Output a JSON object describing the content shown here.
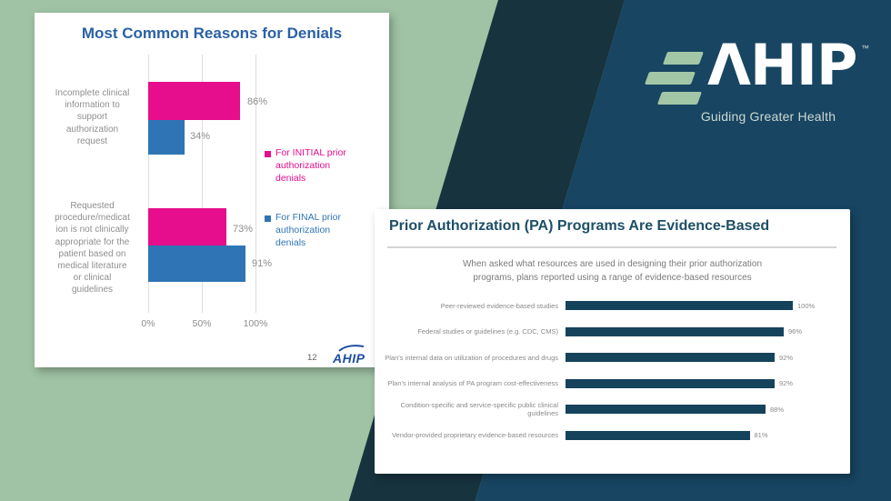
{
  "background": {
    "green": "#9fc3a4",
    "dark_teal": "#17333e",
    "navy": "#174562"
  },
  "brand": {
    "logo_text": "ΛHIP",
    "trademark": "™",
    "tagline": "Guiding Greater Health",
    "stripe_color": "#a2c7a6"
  },
  "slide_denials": {
    "title": "Most Common Reasons for Denials",
    "page_number": "12",
    "footer_logo": "AHIP",
    "x_ticks": [
      "0%",
      "50%",
      "100%"
    ],
    "legend": [
      {
        "label": "For INITIAL prior\nauthorization\ndenials",
        "color": "#e60e8c"
      },
      {
        "label": "For FINAL prior\nauthorization\ndenials",
        "color": "#2f75b5"
      }
    ],
    "groups": [
      {
        "label": "Incomplete clinical\ninformation to\nsupport\nauthorization\nrequest",
        "initial_display": "86%",
        "final_display": "34%"
      },
      {
        "label": "Requested\nprocedure/medicat\nion is not clinically\nappropriate for the\npatient based on\nmedical literature\nor clinical\nguidelines",
        "initial_display": "73%",
        "final_display": "91%"
      }
    ]
  },
  "slide_evidence": {
    "title": "Prior Authorization (PA) Programs Are Evidence-Based",
    "subtitle": "When asked what resources are used in designing their prior authorization\nprograms, plans reported using a range of evidence-based resources",
    "bar_color": "#16435c",
    "bars": [
      {
        "label": "Peer-reviewed evidence-based studies",
        "value": 100,
        "display": "100%"
      },
      {
        "label": "Federal studies or guidelines (e.g. CDC, CMS)",
        "value": 96,
        "display": "96%"
      },
      {
        "label": "Plan's internal data on utilization of procedures and drugs",
        "value": 92,
        "display": "92%"
      },
      {
        "label": "Plan's internal analysis of PA program cost-effectiveness",
        "value": 92,
        "display": "92%"
      },
      {
        "label": "Condition-specific and service-specific public clinical guidelines",
        "value": 88,
        "display": "88%"
      },
      {
        "label": "Vendor-provided proprietary evidence-based resources",
        "value": 81,
        "display": "81%"
      }
    ]
  },
  "chart_data": [
    {
      "type": "bar",
      "orientation": "horizontal",
      "title": "Most Common Reasons for Denials",
      "categories": [
        "Incomplete clinical information to support authorization request",
        "Requested procedure/medication is not clinically appropriate for the patient based on medical literature or clinical guidelines"
      ],
      "series": [
        {
          "name": "For INITIAL prior authorization denials",
          "color": "#e60e8c",
          "values": [
            86,
            73
          ]
        },
        {
          "name": "For FINAL prior authorization denials",
          "color": "#2f75b5",
          "values": [
            34,
            91
          ]
        }
      ],
      "xlabel": "",
      "ylabel": "",
      "xlim": [
        0,
        100
      ],
      "x_ticks": [
        "0%",
        "50%",
        "100%"
      ],
      "grid": true,
      "legend_position": "right",
      "value_labels": [
        "86%",
        "34%",
        "73%",
        "91%"
      ]
    },
    {
      "type": "bar",
      "orientation": "horizontal",
      "title": "Prior Authorization (PA) Programs Are Evidence-Based",
      "subtitle": "When asked what resources are used in designing their prior authorization programs, plans reported using a range of evidence-based resources",
      "categories": [
        "Peer-reviewed evidence-based studies",
        "Federal studies or guidelines (e.g. CDC, CMS)",
        "Plan's internal data on utilization of procedures and drugs",
        "Plan's internal analysis of PA program cost-effectiveness",
        "Condition-specific and service-specific public clinical guidelines",
        "Vendor-provided proprietary evidence-based resources"
      ],
      "values": [
        100,
        96,
        92,
        92,
        88,
        81
      ],
      "xlabel": "",
      "ylabel": "",
      "xlim": [
        0,
        100
      ],
      "grid": false,
      "value_labels": [
        "100%",
        "96%",
        "92%",
        "92%",
        "88%",
        "81%"
      ]
    }
  ]
}
